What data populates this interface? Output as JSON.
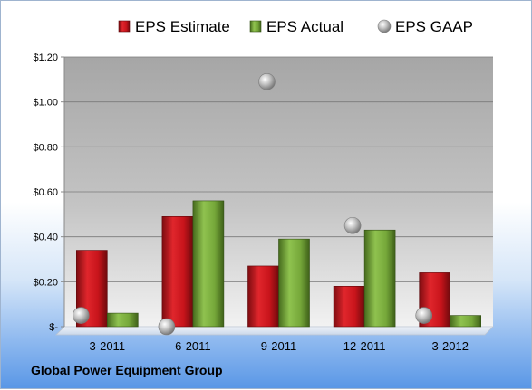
{
  "chart_data": {
    "type": "bar",
    "categories": [
      "3-2011",
      "6-2011",
      "9-2011",
      "12-2011",
      "3-2012"
    ],
    "series": [
      {
        "name": "EPS Estimate",
        "kind": "bar",
        "color": "#c8141b",
        "values": [
          0.34,
          0.49,
          0.27,
          0.18,
          0.24
        ]
      },
      {
        "name": "EPS Actual",
        "kind": "bar",
        "color": "#76a83a",
        "values": [
          0.06,
          0.56,
          0.39,
          0.43,
          0.05
        ]
      },
      {
        "name": "EPS GAAP",
        "kind": "scatter",
        "color": "#a9a9a9",
        "values": [
          0.05,
          0.0,
          1.09,
          0.45,
          0.05
        ]
      }
    ],
    "yticks": [
      0,
      0.2,
      0.4,
      0.6,
      0.8,
      1.0,
      1.2
    ],
    "ytick_labels": [
      "$-",
      "$0.20",
      "$0.40",
      "$0.60",
      "$0.80",
      "$1.00",
      "$1.20"
    ],
    "ylim": [
      0,
      1.2
    ],
    "grid": true,
    "legend_position": "top"
  },
  "footer": {
    "company": "Global Power Equipment Group"
  }
}
